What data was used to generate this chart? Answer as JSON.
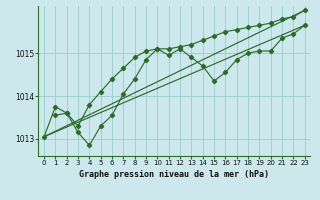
{
  "title": "Graphe pression niveau de la mer (hPa)",
  "background_color": "#cce8ec",
  "grid_color": "#99cccc",
  "line_color": "#2d6b2d",
  "xlim": [
    -0.5,
    23.5
  ],
  "ylim": [
    1012.6,
    1016.1
  ],
  "yticks": [
    1013,
    1014,
    1015
  ],
  "xticks": [
    0,
    1,
    2,
    3,
    4,
    5,
    6,
    7,
    8,
    9,
    10,
    11,
    12,
    13,
    14,
    15,
    16,
    17,
    18,
    19,
    20,
    21,
    22,
    23
  ],
  "series1_x": [
    0,
    1,
    2,
    3,
    4,
    5,
    6,
    7,
    8,
    9,
    10,
    11,
    12,
    13,
    14,
    15,
    16,
    17,
    18,
    19,
    20,
    21,
    22,
    23
  ],
  "series1_y": [
    1013.05,
    1013.75,
    1013.6,
    1013.15,
    1012.85,
    1013.3,
    1013.55,
    1014.05,
    1014.4,
    1014.85,
    1015.1,
    1014.95,
    1015.1,
    1014.9,
    1014.7,
    1014.35,
    1014.55,
    1014.85,
    1015.0,
    1015.05,
    1015.05,
    1015.35,
    1015.45,
    1015.65
  ],
  "series2_x": [
    1,
    2,
    3,
    4,
    5,
    6,
    7,
    8,
    9,
    10,
    11,
    12,
    13,
    14,
    15,
    16,
    17,
    18,
    19,
    20,
    21,
    22,
    23
  ],
  "series2_y": [
    1013.55,
    1013.6,
    1013.3,
    1013.8,
    1014.1,
    1014.4,
    1014.65,
    1014.9,
    1015.05,
    1015.1,
    1015.1,
    1015.15,
    1015.2,
    1015.3,
    1015.4,
    1015.5,
    1015.55,
    1015.6,
    1015.65,
    1015.7,
    1015.8,
    1015.85,
    1016.0
  ],
  "series3_x": [
    0,
    23
  ],
  "series3_y": [
    1013.05,
    1016.0
  ],
  "series4_x": [
    0,
    23
  ],
  "series4_y": [
    1013.05,
    1015.65
  ],
  "title_fontsize": 6,
  "tick_fontsize": 5,
  "ytick_fontsize": 5.5
}
